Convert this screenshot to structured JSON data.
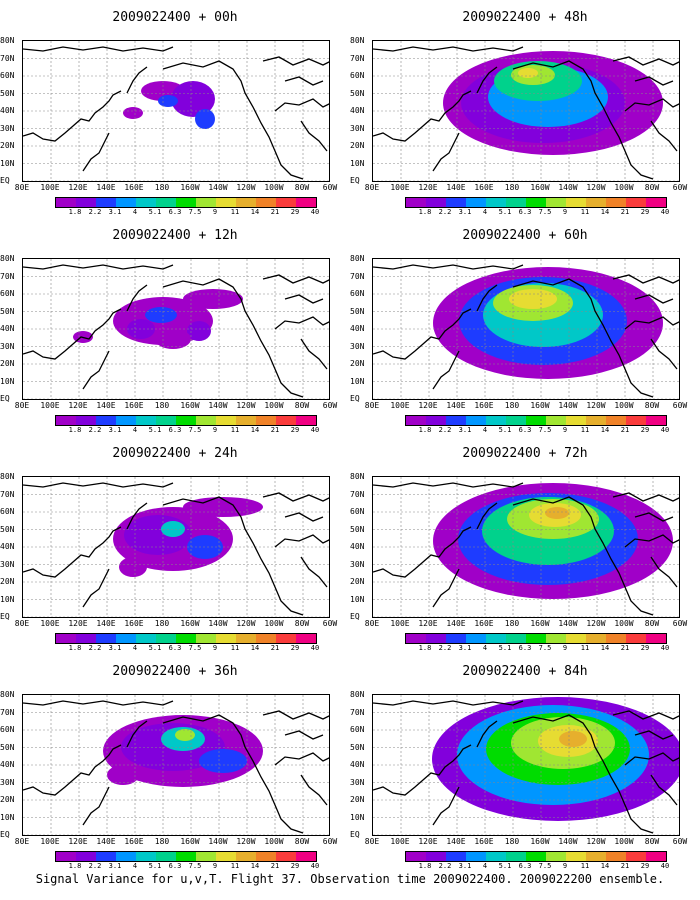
{
  "footer": "Signal Variance for u,v,T. Flight 37. Observation time 2009022400. 2009022200 ensemble.",
  "colorbar": {
    "labels": [
      "1.8",
      "2.2",
      "3.1",
      "4",
      "5.1",
      "6.3",
      "7.5",
      "9",
      "11",
      "14",
      "21",
      "29",
      "40"
    ],
    "colors": [
      "#a000c8",
      "#8200dc",
      "#1e3cff",
      "#0096ff",
      "#00c8c8",
      "#00d28c",
      "#00dc00",
      "#a0e632",
      "#e6dc32",
      "#e6af2d",
      "#f08228",
      "#fa3c3c",
      "#f00082"
    ]
  },
  "lat_labels": [
    "80N",
    "70N",
    "60N",
    "50N",
    "40N",
    "30N",
    "20N",
    "10N",
    "EQ"
  ],
  "lon_labels": [
    "80E",
    "100E",
    "120E",
    "140E",
    "160E",
    "180",
    "160W",
    "140W",
    "120W",
    "100W",
    "80W",
    "60W"
  ],
  "panels": [
    {
      "title": "2009022400 + 00h",
      "hour": 0
    },
    {
      "title": "2009022400 + 48h",
      "hour": 48
    },
    {
      "title": "2009022400 + 12h",
      "hour": 12
    },
    {
      "title": "2009022400 + 60h",
      "hour": 60
    },
    {
      "title": "2009022400 + 24h",
      "hour": 24
    },
    {
      "title": "2009022400 + 72h",
      "hour": 72
    },
    {
      "title": "2009022400 + 36h",
      "hour": 36
    },
    {
      "title": "2009022400 + 84h",
      "hour": 84
    }
  ]
}
